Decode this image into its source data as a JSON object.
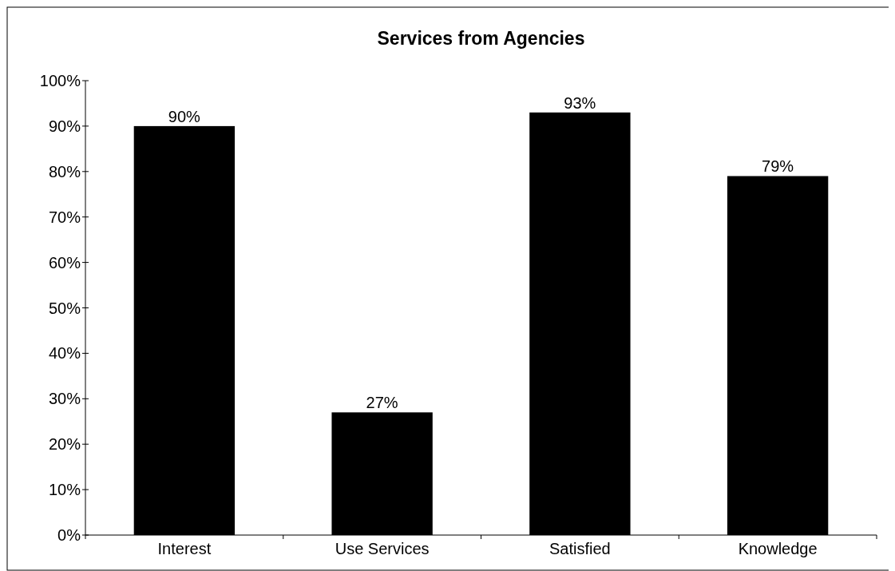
{
  "chart_data": {
    "type": "bar",
    "title": "Services from Agencies",
    "categories": [
      "Interest",
      "Use Services",
      "Satisfied",
      "Knowledge"
    ],
    "values": [
      90,
      27,
      93,
      79
    ],
    "value_labels": [
      "90%",
      "27%",
      "93%",
      "79%"
    ],
    "color": "#000000",
    "ylim": [
      0,
      100
    ],
    "yticks": [
      {
        "value": 0,
        "label": "0%"
      },
      {
        "value": 10,
        "label": "10%"
      },
      {
        "value": 20,
        "label": "20%"
      },
      {
        "value": 30,
        "label": "30%"
      },
      {
        "value": 40,
        "label": "40%"
      },
      {
        "value": 50,
        "label": "50%"
      },
      {
        "value": 60,
        "label": "60%"
      },
      {
        "value": 70,
        "label": "70%"
      },
      {
        "value": 80,
        "label": "80%"
      },
      {
        "value": 90,
        "label": "90%"
      },
      {
        "value": 100,
        "label": "100%"
      }
    ],
    "grid": false
  }
}
